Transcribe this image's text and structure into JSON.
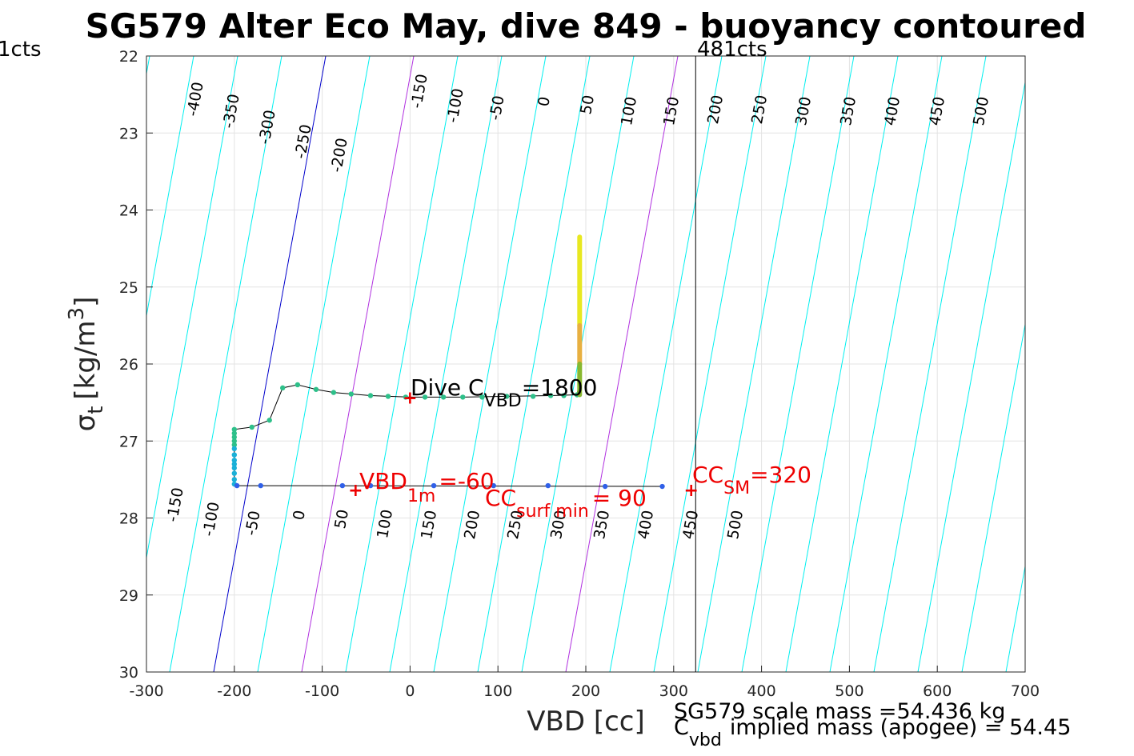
{
  "chart_data": {
    "type": "scatter",
    "title": "SG579 Alter Eco May, dive 849 - buoyancy contoured",
    "xlabel": "VBD [cc]",
    "ylabel_main": "σ",
    "ylabel_sub": "t",
    "ylabel_unit": "[kg/m",
    "ylabel_sup": "3",
    "ylabel_close": "]",
    "xlim": [
      -300,
      700
    ],
    "ylim": [
      22,
      30
    ],
    "y_reversed": true,
    "grid": true,
    "xticks": [
      -300,
      -200,
      -100,
      0,
      100,
      200,
      300,
      400,
      500,
      600,
      700
    ],
    "yticks": [
      22,
      23,
      24,
      25,
      26,
      27,
      28,
      29,
      30
    ],
    "vline": {
      "x": 325,
      "label_right": "481cts",
      "label_left": "1cts"
    },
    "contour_slope": 5.5,
    "contours": {
      "top_labels": [
        -400,
        -350,
        -300,
        -250,
        -200,
        -150,
        -100,
        -50,
        0,
        50,
        100,
        150,
        200,
        250,
        300,
        350,
        400,
        450,
        500
      ],
      "bottom_labels": [
        -150,
        -100,
        -50,
        0,
        50,
        100,
        150,
        200,
        250,
        300,
        350,
        400,
        450,
        500
      ],
      "offsets_top": [
        -270,
        -250,
        -220,
        -190,
        -160,
        -110,
        -60,
        -15,
        35,
        80,
        125,
        175,
        220,
        270,
        320,
        370,
        420,
        470,
        520
      ],
      "offsets_bottom": [
        -250,
        -200,
        -150,
        -120,
        -80,
        -30,
        15,
        65,
        115,
        165,
        215,
        265,
        315,
        365
      ],
      "color": "#00f0f0",
      "zero_color": "#0000cc",
      "highlight_color": "#b030e0"
    },
    "series": [
      {
        "color": "#2ec08a",
        "x": [
          -200,
          -200,
          -200,
          -200,
          -200,
          -180,
          -160,
          -145,
          -128,
          -107,
          -87,
          -67,
          -45,
          -25,
          -5,
          17,
          38,
          60,
          82,
          110,
          140,
          160,
          175,
          190
        ],
        "y": [
          26.85,
          26.9,
          26.95,
          27.0,
          27.05,
          26.82,
          26.73,
          26.31,
          26.27,
          26.33,
          26.37,
          26.39,
          26.41,
          26.42,
          26.43,
          26.43,
          26.43,
          26.43,
          26.43,
          26.42,
          26.42,
          26.41,
          26.41,
          26.4
        ]
      },
      {
        "color": "#1ab0d8",
        "x": [
          -200,
          -200,
          -200,
          -200,
          -200,
          -200,
          -200,
          -200
        ],
        "y": [
          27.1,
          27.18,
          27.25,
          27.3,
          27.35,
          27.42,
          27.5,
          27.56
        ]
      },
      {
        "color": "#3060e8",
        "x": [
          -197,
          -170,
          -77,
          -45,
          27,
          95,
          157,
          222,
          287
        ],
        "y": [
          27.58,
          27.58,
          27.58,
          27.58,
          27.58,
          27.58,
          27.58,
          27.59,
          27.59
        ]
      },
      {
        "color": "#e8e820",
        "x": [
          193,
          193,
          193,
          193
        ],
        "y": [
          24.35,
          24.8,
          25.3,
          25.5
        ]
      },
      {
        "color": "#e8b040",
        "x": [
          193,
          193,
          193
        ],
        "y": [
          25.5,
          25.8,
          26.0
        ]
      },
      {
        "color": "#88b830",
        "x": [
          193,
          193
        ],
        "y": [
          26.0,
          26.4
        ]
      }
    ],
    "markers": [
      {
        "x": 0,
        "y": 26.42
      },
      {
        "x": -62,
        "y": 27.62
      },
      {
        "x": 320,
        "y": 27.62
      }
    ],
    "annotations": {
      "dive_cvbd_prefix": "Dive C",
      "dive_cvbd_sub": "VBD",
      "dive_cvbd_suffix": "=1800",
      "vbd1m_prefix": "VBD",
      "vbd1m_sub": "1m",
      "vbd1m_suffix": "=-60",
      "ccsurf_prefix": "CC",
      "ccsurf_sub": "surf min",
      "ccsurf_suffix": "= 90",
      "ccsm_prefix": "CC",
      "ccsm_sub": "SM",
      "ccsm_suffix": "=320",
      "scale_mass": "SG579 scale mass =54.436 kg",
      "implied_prefix": "C",
      "implied_sub": "vbd",
      "implied_suffix": "implied mass (apogee) = 54.45"
    }
  }
}
